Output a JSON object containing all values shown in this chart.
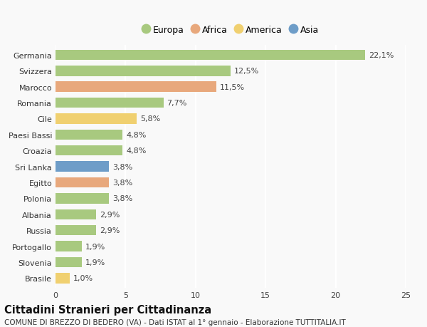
{
  "categories": [
    "Germania",
    "Svizzera",
    "Marocco",
    "Romania",
    "Cile",
    "Paesi Bassi",
    "Croazia",
    "Sri Lanka",
    "Egitto",
    "Polonia",
    "Albania",
    "Russia",
    "Portogallo",
    "Slovenia",
    "Brasile"
  ],
  "values": [
    22.1,
    12.5,
    11.5,
    7.7,
    5.8,
    4.8,
    4.8,
    3.8,
    3.8,
    3.8,
    2.9,
    2.9,
    1.9,
    1.9,
    1.0
  ],
  "continents": [
    "Europa",
    "Europa",
    "Africa",
    "Europa",
    "America",
    "Europa",
    "Europa",
    "Asia",
    "Africa",
    "Europa",
    "Europa",
    "Europa",
    "Europa",
    "Europa",
    "America"
  ],
  "labels": [
    "22,1%",
    "12,5%",
    "11,5%",
    "7,7%",
    "5,8%",
    "4,8%",
    "4,8%",
    "3,8%",
    "3,8%",
    "3,8%",
    "2,9%",
    "2,9%",
    "1,9%",
    "1,9%",
    "1,0%"
  ],
  "colors": {
    "Europa": "#a8c97f",
    "Africa": "#e8a87c",
    "America": "#f0d070",
    "Asia": "#6e9dc8"
  },
  "xlim": [
    0,
    25
  ],
  "xticks": [
    0,
    5,
    10,
    15,
    20,
    25
  ],
  "title": "Cittadini Stranieri per Cittadinanza",
  "subtitle": "COMUNE DI BREZZO DI BEDERO (VA) - Dati ISTAT al 1° gennaio - Elaborazione TUTTITALIA.IT",
  "background_color": "#f9f9f9",
  "grid_color": "#ffffff",
  "bar_height": 0.65,
  "label_fontsize": 8,
  "tick_fontsize": 8,
  "title_fontsize": 10.5,
  "subtitle_fontsize": 7.5,
  "legend_order": [
    "Europa",
    "Africa",
    "America",
    "Asia"
  ]
}
